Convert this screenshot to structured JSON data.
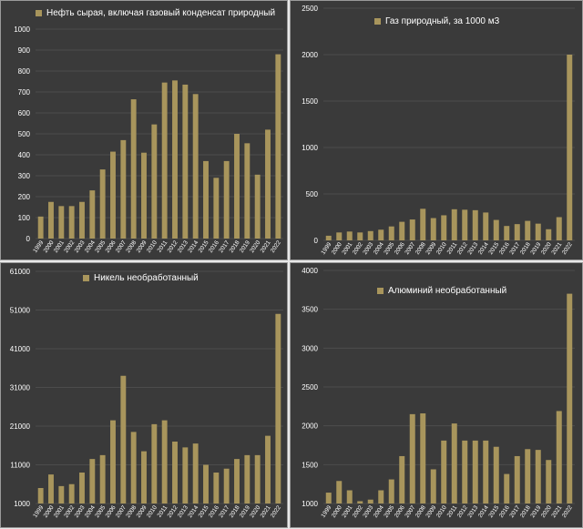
{
  "colors": {
    "bar": "#a8955c",
    "background": "#3a3a3a",
    "grid": "#4c4c4c",
    "text": "#ffffff"
  },
  "chart_data": [
    {
      "type": "bar",
      "title": "",
      "legend": "Нефть сырая, включая газовый конденсат природный",
      "categories": [
        "1999",
        "2000",
        "2001",
        "2002",
        "2003",
        "2004",
        "2005",
        "2006",
        "2007",
        "2008",
        "2009",
        "2010",
        "2011",
        "2012",
        "2013",
        "2014",
        "2015",
        "2016",
        "2017",
        "2018",
        "2019",
        "2020",
        "2021",
        "2022"
      ],
      "values": [
        105,
        175,
        155,
        155,
        175,
        230,
        330,
        415,
        470,
        665,
        410,
        545,
        745,
        755,
        735,
        690,
        370,
        290,
        370,
        500,
        455,
        305,
        520,
        880
      ],
      "ylim": [
        0,
        1000
      ],
      "yticks": [
        "0",
        "100",
        "200",
        "300",
        "400",
        "500",
        "600",
        "700",
        "800",
        "900",
        "1000"
      ],
      "grid": true,
      "legend_position": "top-left"
    },
    {
      "type": "bar",
      "title": "",
      "legend": "Газ природный, за 1000 м3",
      "categories": [
        "1999",
        "2000",
        "2001",
        "2002",
        "2003",
        "2004",
        "2005",
        "2006",
        "2007",
        "2008",
        "2009",
        "2010",
        "2011",
        "2012",
        "2013",
        "2014",
        "2015",
        "2016",
        "2017",
        "2018",
        "2019",
        "2020",
        "2021",
        "2022"
      ],
      "values": [
        50,
        85,
        95,
        85,
        100,
        115,
        150,
        200,
        225,
        340,
        240,
        270,
        335,
        330,
        325,
        300,
        220,
        155,
        175,
        210,
        180,
        120,
        250,
        2000
      ],
      "ylim": [
        0,
        2500
      ],
      "yticks": [
        "0",
        "500",
        "1000",
        "1500",
        "2000",
        "2500"
      ],
      "grid": true,
      "legend_position": "top-center"
    },
    {
      "type": "bar",
      "title": "",
      "legend": "Никель необработанный",
      "categories": [
        "1999",
        "2000",
        "2001",
        "2002",
        "2003",
        "2004",
        "2005",
        "2006",
        "2007",
        "2008",
        "2009",
        "2010",
        "2011",
        "2012",
        "2013",
        "2014",
        "2015",
        "2016",
        "2017",
        "2018",
        "2019",
        "2020",
        "2021",
        "2022"
      ],
      "values": [
        5000,
        8500,
        5500,
        6000,
        9000,
        12500,
        13500,
        22500,
        34000,
        19500,
        14500,
        21500,
        22500,
        17000,
        15500,
        16500,
        11000,
        9000,
        10000,
        12500,
        13500,
        13500,
        18500,
        50000
      ],
      "ylim": [
        1000,
        61000
      ],
      "yticks": [
        "1000",
        "11000",
        "21000",
        "31000",
        "41000",
        "51000",
        "61000"
      ],
      "grid": true,
      "legend_position": "top-left"
    },
    {
      "type": "bar",
      "title": "",
      "legend": "Алюминий необработанный",
      "categories": [
        "1999",
        "2000",
        "2001",
        "2002",
        "2003",
        "2004",
        "2005",
        "2006",
        "2007",
        "2008",
        "2009",
        "2010",
        "2011",
        "2012",
        "2013",
        "2014",
        "2015",
        "2016",
        "2017",
        "2018",
        "2019",
        "2020",
        "2021",
        "2022"
      ],
      "values": [
        1140,
        1290,
        1170,
        1030,
        1050,
        1170,
        1310,
        1610,
        2150,
        2160,
        1440,
        1810,
        2030,
        1810,
        1810,
        1810,
        1730,
        1380,
        1610,
        1700,
        1690,
        1560,
        2190,
        3700
      ],
      "ylim": [
        1000,
        4000
      ],
      "yticks": [
        "1000",
        "1500",
        "2000",
        "2500",
        "3000",
        "3500",
        "4000"
      ],
      "grid": true,
      "legend_position": "top-left"
    }
  ]
}
